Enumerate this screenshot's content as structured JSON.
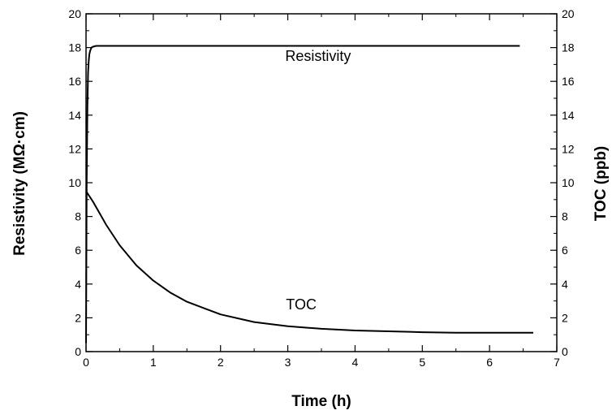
{
  "chart_data": {
    "type": "line",
    "title": "",
    "xlabel": "Time (h)",
    "ylabel_left": "Resistivity (MΩ·cm)",
    "ylabel_right": "TOC (ppb)",
    "xlim": [
      0,
      7
    ],
    "ylim_left": [
      0,
      20
    ],
    "ylim_right": [
      0,
      20
    ],
    "x_ticks": [
      "0",
      "1",
      "2",
      "3",
      "4",
      "5",
      "6",
      "7"
    ],
    "y_ticks_left": [
      "0",
      "2",
      "4",
      "6",
      "8",
      "10",
      "12",
      "14",
      "16",
      "18",
      "20"
    ],
    "y_ticks_right": [
      "0",
      "2",
      "4",
      "6",
      "8",
      "10",
      "12",
      "14",
      "16",
      "18",
      "20"
    ],
    "grid": false,
    "legend": "none",
    "series": [
      {
        "name": "Resistivity",
        "axis": "left",
        "x": [
          0,
          0.01,
          0.02,
          0.03,
          0.04,
          0.05,
          0.06,
          0.08,
          0.1,
          0.15,
          0.5,
          1,
          2,
          3,
          4,
          5,
          6,
          6.45
        ],
        "y": [
          0.5,
          10,
          14.5,
          16.5,
          17.2,
          17.6,
          17.8,
          18.0,
          18.05,
          18.1,
          18.1,
          18.1,
          18.1,
          18.1,
          18.1,
          18.1,
          18.1,
          18.1
        ]
      },
      {
        "name": "TOC",
        "axis": "right",
        "x": [
          0,
          0.05,
          0.1,
          0.2,
          0.3,
          0.5,
          0.75,
          1,
          1.25,
          1.5,
          2,
          2.5,
          3,
          3.5,
          4,
          4.5,
          5,
          5.5,
          6,
          6.65
        ],
        "y": [
          9.5,
          9.2,
          8.9,
          8.2,
          7.5,
          6.3,
          5.1,
          4.2,
          3.5,
          2.95,
          2.2,
          1.75,
          1.5,
          1.35,
          1.25,
          1.2,
          1.15,
          1.12,
          1.12,
          1.12
        ]
      }
    ],
    "annotations": [
      {
        "text": "Resistivity",
        "x": 3.45,
        "y": 17.2
      },
      {
        "text": "TOC",
        "x": 3.2,
        "y": 2.5
      }
    ]
  }
}
